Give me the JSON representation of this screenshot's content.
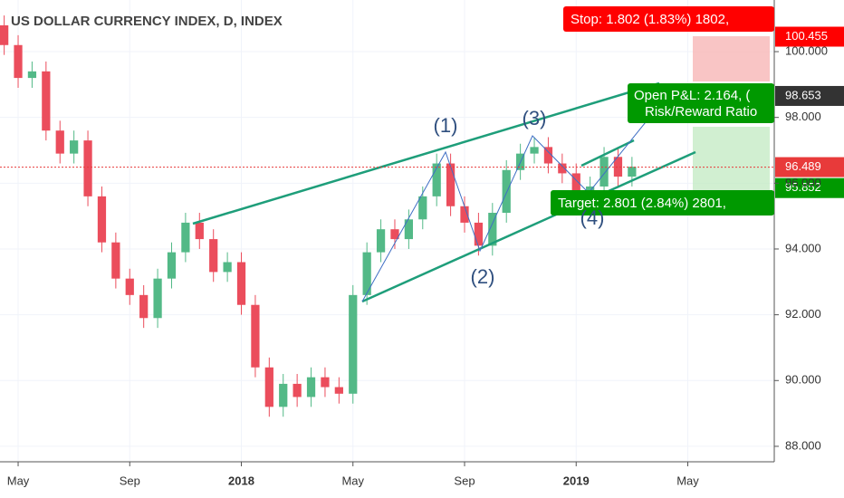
{
  "chart_data": {
    "type": "candlestick",
    "title": "US DOLLAR CURRENCY INDEX, D, INDEX",
    "x": [
      -0.5,
      0,
      0.5,
      1,
      1.5,
      2,
      2.5,
      3,
      3.5,
      4,
      4.5,
      5,
      5.5,
      6,
      6.5,
      7,
      7.5,
      8,
      8.5,
      9,
      9.5,
      10,
      10.5,
      11,
      11.5,
      12,
      12.5,
      13,
      13.5,
      14,
      14.5,
      15,
      15.5,
      16,
      16.5,
      17,
      17.5,
      18,
      18.5,
      19,
      19.5,
      20,
      20.5,
      21,
      21.5,
      22
    ],
    "open": [
      100.8,
      100.2,
      99.2,
      99.4,
      97.6,
      96.9,
      97.3,
      95.6,
      94.2,
      93.1,
      92.6,
      91.9,
      93.1,
      93.9,
      94.8,
      94.3,
      93.3,
      93.6,
      92.3,
      90.4,
      89.2,
      89.9,
      89.5,
      90.1,
      89.8,
      89.6,
      92.6,
      93.9,
      94.6,
      94.3,
      94.9,
      95.6,
      96.6,
      95.3,
      94.8,
      94.1,
      95.1,
      96.4,
      96.9,
      97.1,
      96.6,
      96.3,
      95.7,
      95.9,
      96.8,
      96.2
    ],
    "high": [
      101.1,
      100.5,
      99.7,
      99.7,
      97.9,
      97.6,
      97.6,
      95.9,
      94.5,
      93.4,
      92.9,
      93.4,
      94.2,
      95.1,
      95.1,
      94.6,
      93.9,
      93.9,
      92.6,
      90.7,
      90.2,
      90.2,
      90.4,
      90.4,
      90.1,
      92.9,
      94.2,
      94.9,
      94.9,
      95.2,
      95.9,
      96.9,
      96.9,
      95.6,
      95.1,
      95.4,
      96.7,
      97.2,
      97.4,
      97.4,
      96.9,
      96.6,
      96.2,
      97.1,
      97.1,
      96.8
    ],
    "low": [
      99.9,
      98.9,
      98.9,
      97.3,
      96.6,
      96.6,
      95.3,
      93.9,
      92.8,
      92.3,
      91.6,
      91.6,
      92.8,
      93.6,
      94.0,
      93.0,
      93.0,
      92.0,
      90.1,
      88.9,
      88.9,
      89.2,
      89.2,
      89.5,
      89.3,
      89.3,
      92.3,
      93.6,
      94.0,
      94.0,
      94.6,
      95.3,
      95.0,
      94.5,
      93.8,
      93.8,
      94.8,
      96.1,
      96.6,
      96.3,
      96.0,
      95.4,
      95.4,
      95.6,
      95.9,
      95.9
    ],
    "close": [
      100.2,
      99.2,
      99.4,
      97.6,
      96.9,
      97.3,
      95.6,
      94.2,
      93.1,
      92.6,
      91.9,
      93.1,
      93.9,
      94.8,
      94.3,
      93.3,
      93.6,
      92.3,
      90.4,
      89.2,
      89.9,
      89.5,
      90.1,
      89.8,
      89.6,
      92.6,
      93.9,
      94.6,
      94.3,
      94.9,
      95.6,
      96.6,
      95.3,
      94.8,
      94.1,
      95.1,
      96.4,
      96.9,
      97.1,
      96.6,
      96.3,
      95.7,
      95.9,
      96.8,
      96.2,
      96.5
    ],
    "up_color": "#53b987",
    "down_color": "#eb4d5c",
    "xlim": [
      -0.65,
      27.1
    ],
    "xticks": [
      {
        "value": 0,
        "label": "May"
      },
      {
        "value": 4,
        "label": "Sep"
      },
      {
        "value": 8,
        "label": "2018"
      },
      {
        "value": 12,
        "label": "May"
      },
      {
        "value": 16,
        "label": "Sep"
      },
      {
        "value": 20,
        "label": "2019"
      },
      {
        "value": 24,
        "label": "May"
      }
    ],
    "ylim": [
      87.53,
      101.57
    ],
    "yticks": [
      {
        "value": 88,
        "label": "88.000"
      },
      {
        "value": 90,
        "label": "90.000"
      },
      {
        "value": 92,
        "label": "92.000"
      },
      {
        "value": 94,
        "label": "94.000"
      },
      {
        "value": 96,
        "label": "96.000"
      },
      {
        "value": 98,
        "label": "98.000"
      },
      {
        "value": 100,
        "label": "100.000"
      }
    ],
    "price_tags": [
      {
        "value": 100.455,
        "label": "100.455",
        "color": "#ff0000"
      },
      {
        "value": 98.653,
        "label": "98.653",
        "color": "#333333"
      },
      {
        "value": 96.489,
        "label": "96.489",
        "color": "#e83a3a"
      },
      {
        "value": 95.852,
        "label": "95.852",
        "color": "#009900"
      }
    ],
    "waves": [
      "(1)",
      "(2)",
      "(3)",
      "(4)"
    ],
    "stop_label": "Stop: 1.802 (1.83%) 1802,",
    "target_label": "Target: 2.801 (2.84%) 2801,",
    "pnl_label": "Open P&L: 2.164, (",
    "rr_label": "Risk/Reward Ratio"
  }
}
